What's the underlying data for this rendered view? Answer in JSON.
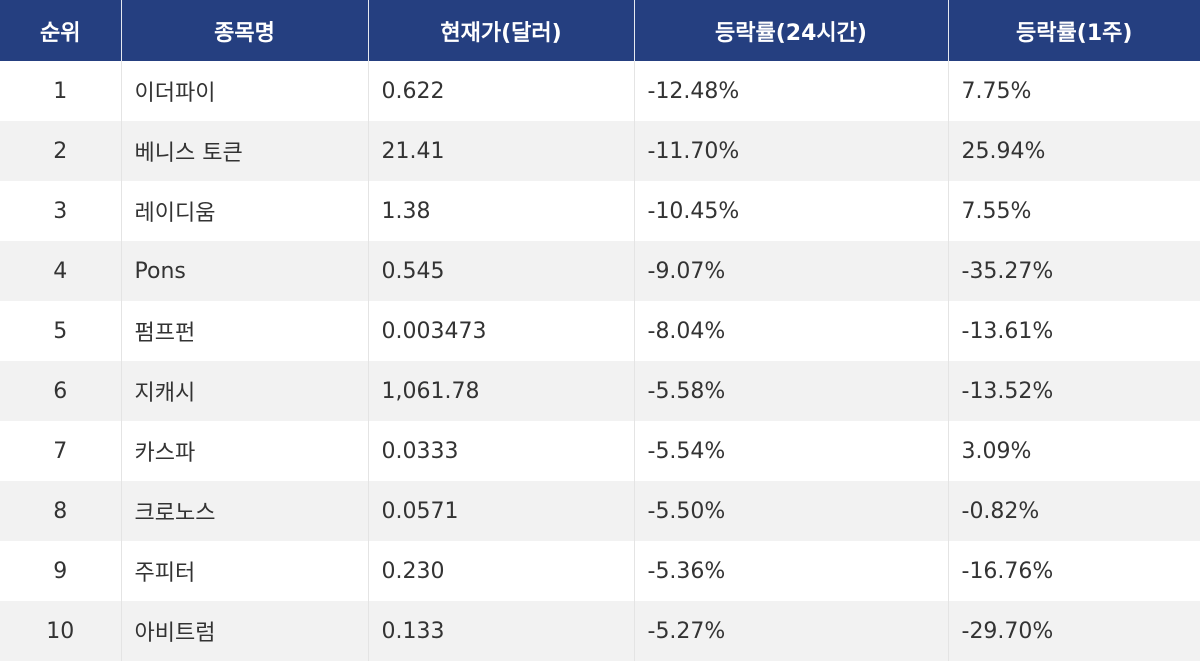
{
  "header": {
    "rank": "순위",
    "name": "종목명",
    "price": "현재가(달러)",
    "change_24h": "등락률(24시간)",
    "change_1w": "등락률(1주)"
  },
  "rows": [
    {
      "rank": "1",
      "name": "이더파이",
      "price": "0.622",
      "change_24h": "-12.48%",
      "change_1w": "7.75%"
    },
    {
      "rank": "2",
      "name": "베니스 토큰",
      "price": "21.41",
      "change_24h": "-11.70%",
      "change_1w": "25.94%"
    },
    {
      "rank": "3",
      "name": "레이디움",
      "price": "1.38",
      "change_24h": "-10.45%",
      "change_1w": "7.55%"
    },
    {
      "rank": "4",
      "name": "Pons",
      "price": "0.545",
      "change_24h": "-9.07%",
      "change_1w": "-35.27%"
    },
    {
      "rank": "5",
      "name": "펌프펀",
      "price": "0.003473",
      "change_24h": "-8.04%",
      "change_1w": "-13.61%"
    },
    {
      "rank": "6",
      "name": "지캐시",
      "price": "1,061.78",
      "change_24h": "-5.58%",
      "change_1w": "-13.52%"
    },
    {
      "rank": "7",
      "name": "카스파",
      "price": "0.0333",
      "change_24h": "-5.54%",
      "change_1w": "3.09%"
    },
    {
      "rank": "8",
      "name": "크로노스",
      "price": "0.0571",
      "change_24h": "-5.50%",
      "change_1w": "-0.82%"
    },
    {
      "rank": "9",
      "name": "주피터",
      "price": "0.230",
      "change_24h": "-5.36%",
      "change_1w": "-16.76%"
    },
    {
      "rank": "10",
      "name": "아비트럼",
      "price": "0.133",
      "change_24h": "-5.27%",
      "change_1w": "-29.70%"
    }
  ]
}
